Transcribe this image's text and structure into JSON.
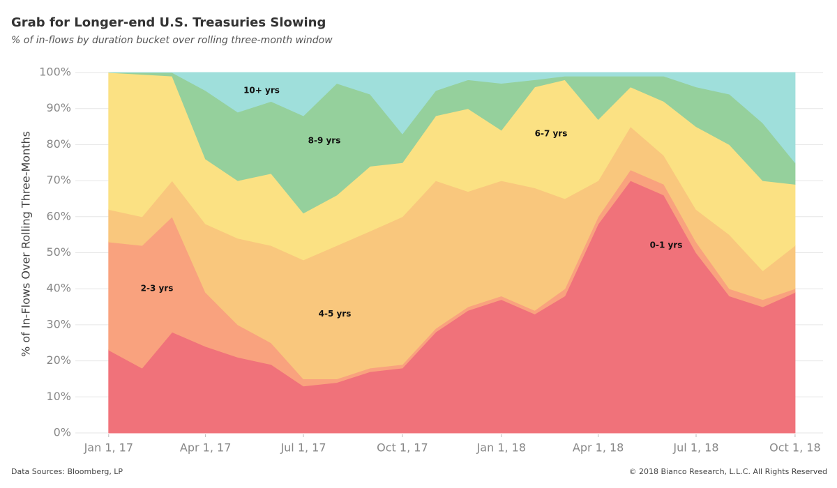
{
  "chart_data": {
    "type": "stacked_area",
    "title": "Grab for Longer-end U.S. Treasuries Slowing",
    "subtitle": "% of in-flows by duration bucket over rolling three-month window",
    "y_label": "% of In-Flows Over Rolling Three-Months",
    "source": "Data Sources: Bloomberg, LP",
    "copyright": "© 2018 Bianco Research, L.L.C. All Rights Reserved",
    "x": [
      "2017-01-01",
      "2017-02-01",
      "2017-03-01",
      "2017-04-01",
      "2017-05-01",
      "2017-06-01",
      "2017-07-01",
      "2017-08-01",
      "2017-09-01",
      "2017-10-01",
      "2017-11-01",
      "2017-12-01",
      "2018-01-01",
      "2018-02-01",
      "2018-03-01",
      "2018-04-01",
      "2018-05-01",
      "2018-06-01",
      "2018-07-01",
      "2018-08-01",
      "2018-09-01",
      "2018-10-01"
    ],
    "series": [
      {
        "name": "0-1 yrs",
        "color": "#f0727a",
        "values": [
          23,
          18,
          28,
          24,
          21,
          19,
          13,
          14,
          17,
          18,
          28,
          34,
          37,
          33,
          38,
          58,
          70,
          66,
          50,
          38,
          35,
          39
        ]
      },
      {
        "name": "2-3 yrs",
        "color": "#f9a27e",
        "values": [
          30,
          34,
          32,
          15,
          9,
          6,
          2,
          1,
          1,
          1,
          1,
          1,
          1,
          1,
          2,
          2,
          3,
          3,
          3,
          2,
          2,
          1
        ]
      },
      {
        "name": "4-5 yrs",
        "color": "#f9c77d",
        "values": [
          9,
          8,
          10,
          19,
          24,
          27,
          33,
          37,
          38,
          41,
          41,
          32,
          32,
          34,
          25,
          10,
          12,
          8,
          9,
          15,
          8,
          12
        ]
      },
      {
        "name": "6-7 yrs",
        "color": "#fbe183",
        "values": [
          38,
          39.5,
          29,
          18,
          16,
          20,
          13,
          14,
          18,
          15,
          18,
          23,
          14,
          28,
          33,
          17,
          11,
          15,
          23,
          25,
          25,
          17
        ]
      },
      {
        "name": "8-9 yrs",
        "color": "#95d09c",
        "values": [
          0,
          0.5,
          1,
          19,
          19,
          20,
          27,
          31,
          20,
          8,
          7,
          8,
          13,
          2,
          1,
          12,
          3,
          7,
          11,
          14,
          16,
          6
        ]
      },
      {
        "name": "10+ yrs",
        "color": "#9fdfdb",
        "values": [
          0,
          0,
          0,
          5,
          11,
          8,
          12,
          3,
          6,
          17,
          5,
          2,
          3,
          2,
          1,
          1,
          1,
          1,
          4,
          6,
          14,
          25
        ]
      }
    ],
    "xlim": [
      "2016-12-01",
      "2018-10-27"
    ],
    "xticks": [
      {
        "value": "2017-01-01",
        "label": "Jan 1, 17"
      },
      {
        "value": "2017-04-01",
        "label": "Apr 1, 17"
      },
      {
        "value": "2017-07-01",
        "label": "Jul 1, 17"
      },
      {
        "value": "2017-10-01",
        "label": "Oct 1, 17"
      },
      {
        "value": "2018-01-01",
        "label": "Jan 1, 18"
      },
      {
        "value": "2018-04-01",
        "label": "Apr 1, 18"
      },
      {
        "value": "2018-07-01",
        "label": "Jul 1, 18"
      },
      {
        "value": "2018-10-01",
        "label": "Oct 1, 18"
      }
    ],
    "ylim": [
      0,
      100
    ],
    "yticks": [
      {
        "value": 0,
        "label": "0%"
      },
      {
        "value": 10,
        "label": "10%"
      },
      {
        "value": 20,
        "label": "20%"
      },
      {
        "value": 30,
        "label": "30%"
      },
      {
        "value": 40,
        "label": "40%"
      },
      {
        "value": 50,
        "label": "50%"
      },
      {
        "value": 60,
        "label": "60%"
      },
      {
        "value": 70,
        "label": "70%"
      },
      {
        "value": 80,
        "label": "80%"
      },
      {
        "value": 90,
        "label": "90%"
      },
      {
        "value": 100,
        "label": "100%"
      }
    ],
    "grid": true
  }
}
